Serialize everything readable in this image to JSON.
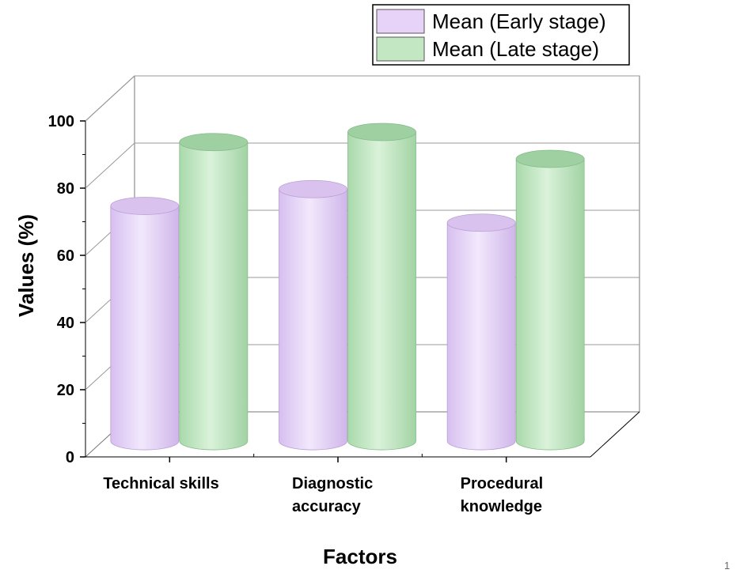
{
  "chart_data": {
    "type": "bar",
    "categories": [
      [
        "Technical skills"
      ],
      [
        "Diagnostic",
        "accuracy"
      ],
      [
        "Procedural",
        "knowledge"
      ]
    ],
    "series": [
      {
        "name": "Mean (Early stage)",
        "color": "#e6d3f7",
        "values": [
          68,
          73,
          63
        ]
      },
      {
        "name": "Mean (Late stage)",
        "color": "#c3e6c3",
        "values": [
          87,
          90,
          82
        ]
      }
    ],
    "xlabel": "Factors",
    "ylabel": "Values   (%)",
    "ylim": [
      0,
      100
    ],
    "yticks": [
      0,
      20,
      40,
      60,
      80,
      100
    ],
    "grid": true,
    "legend_position": "top-right"
  },
  "page_number": "1"
}
